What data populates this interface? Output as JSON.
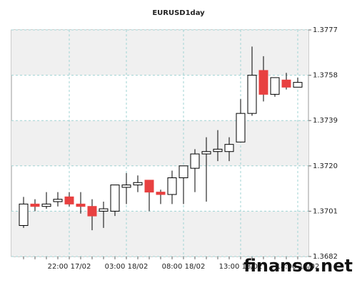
{
  "chart_data": {
    "type": "candlestick",
    "title": "EURUSD1day",
    "categories": [
      null,
      null,
      null,
      null,
      "22:00 17/02",
      null,
      null,
      null,
      null,
      "03:00 18/02",
      null,
      null,
      null,
      null,
      "08:00 18/02",
      null,
      null,
      null,
      null,
      "13:00 18/02",
      null,
      null,
      null,
      null,
      "18:00 18/02"
    ],
    "open": [
      1.3695,
      1.3704,
      1.3703,
      1.3705,
      1.3707,
      1.3704,
      1.3703,
      1.3701,
      1.3701,
      1.3711,
      1.3712,
      1.3714,
      1.3709,
      1.3708,
      1.3715,
      1.3719,
      1.3725,
      1.3726,
      1.3726,
      1.373,
      1.3742,
      1.376,
      1.375,
      1.3756,
      1.3753
    ],
    "high": [
      1.3707,
      1.3706,
      1.3709,
      1.3709,
      1.3709,
      1.3709,
      1.3706,
      1.3705,
      1.3712,
      1.3717,
      1.3716,
      1.3714,
      1.371,
      1.3718,
      1.372,
      1.3727,
      1.3732,
      1.3735,
      1.3732,
      1.3748,
      1.377,
      1.3766,
      1.3757,
      1.3759,
      1.3757
    ],
    "low": [
      1.3694,
      1.3701,
      1.3702,
      1.3703,
      1.3703,
      1.37,
      1.3693,
      1.3694,
      1.3699,
      1.3704,
      1.3709,
      1.3701,
      1.3704,
      1.3704,
      1.3704,
      1.3709,
      1.3705,
      1.3722,
      1.3722,
      1.373,
      1.3741,
      1.3747,
      1.3749,
      1.3752,
      1.3753
    ],
    "close": [
      1.3704,
      1.3703,
      1.3704,
      1.3706,
      1.3704,
      1.3703,
      1.3699,
      1.3702,
      1.3712,
      1.3712,
      1.3713,
      1.3709,
      1.3708,
      1.3715,
      1.372,
      1.3725,
      1.3726,
      1.3727,
      1.3729,
      1.3742,
      1.3758,
      1.375,
      1.3757,
      1.3753,
      1.3755
    ],
    "up_color": "#ffffff",
    "down_color": "#e84040",
    "ylim": [
      1.3682,
      1.3777
    ],
    "yticks": [
      1.3682,
      1.3701,
      {
        "value": 1.372,
        "label": "1.3720"
      },
      1.3739,
      1.3758,
      1.3777
    ],
    "grid": true
  },
  "watermark": "finanso.net"
}
